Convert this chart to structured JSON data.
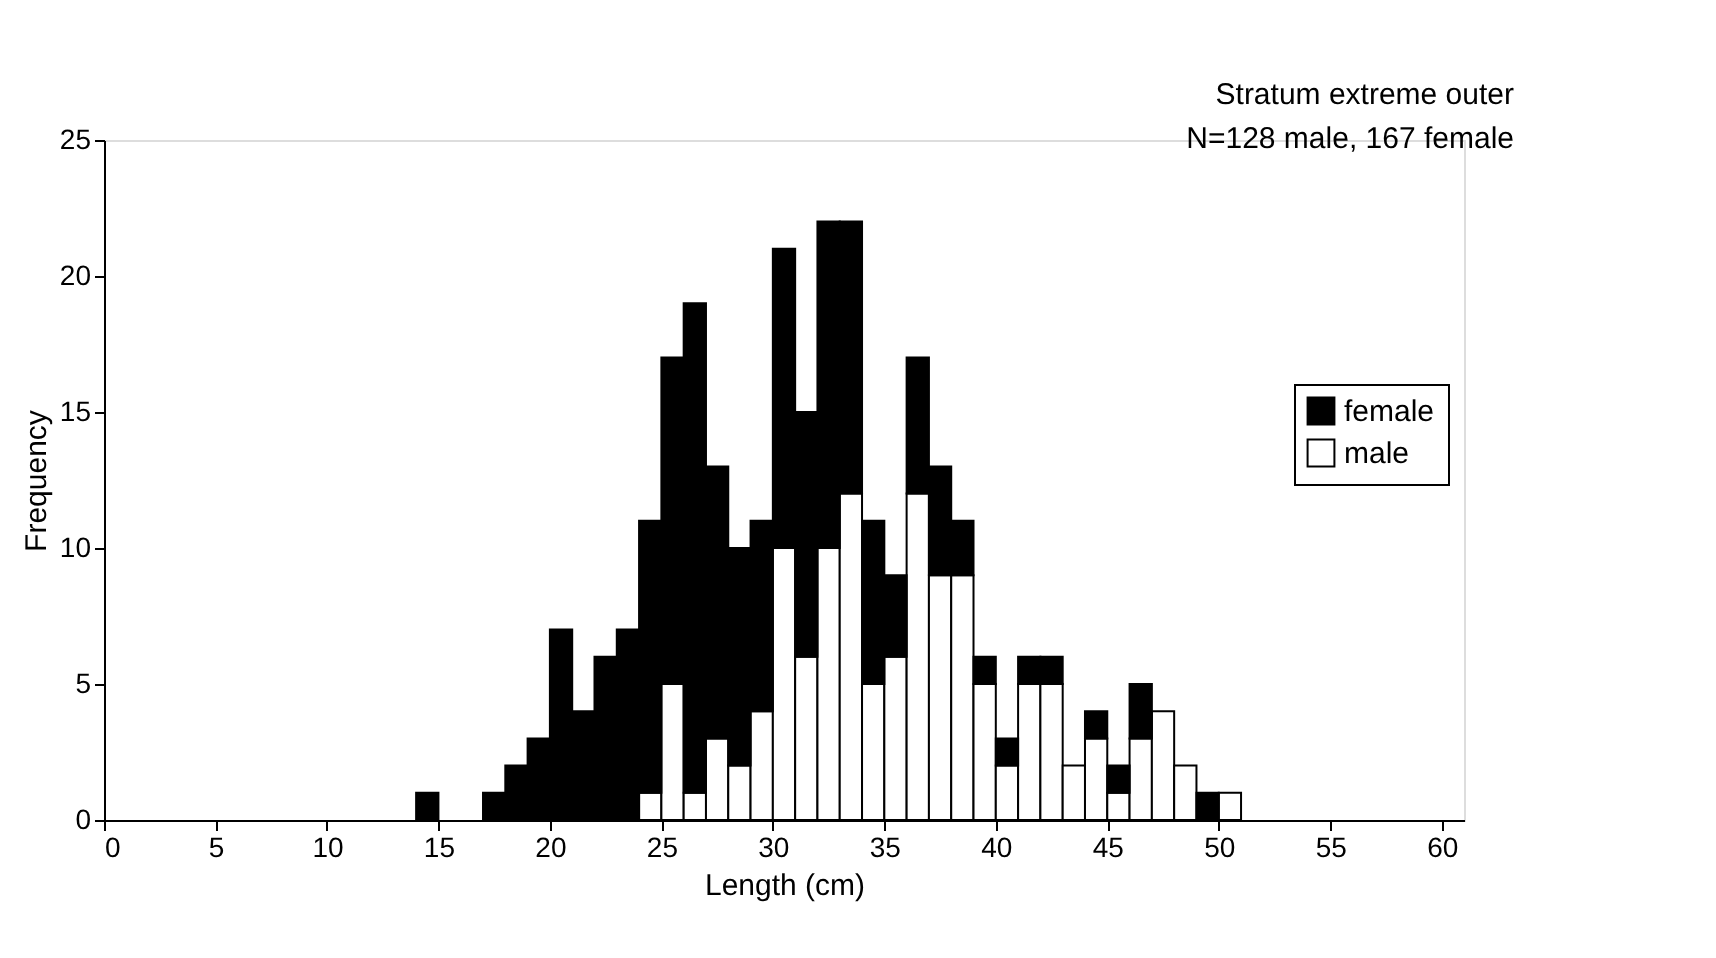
{
  "chart_data": {
    "type": "bar",
    "stacked": true,
    "xlabel": "Length (cm)",
    "ylabel": "Frequency",
    "annotations": [
      "Stratum extreme outer",
      "N=128 male, 167 female"
    ],
    "x": [
      14.5,
      15.5,
      16.5,
      17.5,
      18.5,
      19.5,
      20.5,
      21.5,
      22.5,
      23.5,
      24.5,
      25.5,
      26.5,
      27.5,
      28.5,
      29.5,
      30.5,
      31.5,
      32.5,
      33.5,
      34.5,
      35.5,
      36.5,
      37.5,
      38.5,
      39.5,
      40.5,
      41.5,
      42.5,
      43.5,
      44.5,
      45.5,
      46.5,
      47.5,
      48.5,
      49.5,
      50.5
    ],
    "series": [
      {
        "name": "male",
        "color": "#ffffff",
        "values": [
          0,
          0,
          0,
          0,
          0,
          0,
          0,
          0,
          0,
          0,
          1,
          5,
          1,
          3,
          2,
          4,
          10,
          6,
          10,
          12,
          5,
          6,
          12,
          9,
          9,
          5,
          2,
          5,
          5,
          2,
          3,
          1,
          3,
          4,
          2,
          0,
          1
        ]
      },
      {
        "name": "female",
        "color": "#000000",
        "values": [
          1,
          0,
          0,
          1,
          2,
          3,
          7,
          4,
          6,
          7,
          10,
          12,
          18,
          10,
          8,
          7,
          11,
          9,
          12,
          10,
          6,
          3,
          5,
          4,
          2,
          1,
          1,
          1,
          1,
          0,
          1,
          1,
          2,
          0,
          0,
          1,
          0
        ]
      }
    ],
    "xlim": [
      0,
      61
    ],
    "xticks": [
      0,
      5,
      10,
      15,
      20,
      25,
      30,
      35,
      40,
      45,
      50,
      55,
      60
    ],
    "ylim": [
      0,
      25
    ],
    "yticks": [
      0,
      5,
      10,
      15,
      20,
      25
    ],
    "grid": false,
    "legend": "right"
  }
}
